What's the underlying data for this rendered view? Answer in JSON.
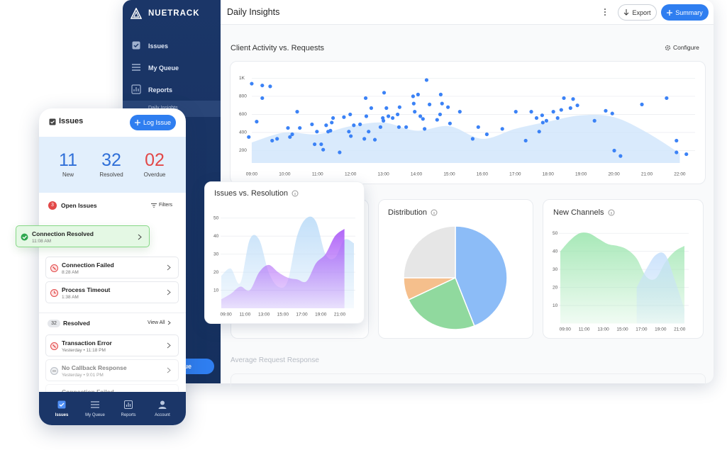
{
  "app": {
    "brand": "NUETRACK",
    "nav": [
      "Issues",
      "My Queue",
      "Reports",
      "Daily Insights"
    ],
    "sidebar_button": "Log Issue",
    "page_title": "Daily Insights",
    "export": "Export",
    "summary": "Summary",
    "configure": "Configure",
    "footer_section": "Average Request Response"
  },
  "chart_data": [
    {
      "type": "scatter",
      "title": "Client Activity vs. Requests",
      "color": "#3b82f6",
      "x": [
        8.91,
        9.0,
        9.15,
        9.32,
        9.32,
        9.56,
        9.62,
        9.77,
        10.1,
        10.16,
        10.23,
        10.38,
        10.46,
        10.83,
        10.91,
        10.98,
        11.11,
        11.17,
        11.26,
        11.32,
        11.39,
        11.43,
        11.47,
        11.67,
        11.8,
        11.95,
        11.99,
        12.01,
        12.1,
        12.29,
        12.42,
        12.46,
        12.48,
        12.55,
        12.63,
        12.74,
        12.91,
        12.98,
        13.0,
        13.02,
        13.09,
        13.15,
        13.28,
        13.43,
        13.47,
        13.49,
        13.69,
        13.9,
        13.92,
        13.95,
        14.05,
        14.12,
        14.2,
        14.25,
        14.31,
        14.4,
        14.63,
        14.72,
        14.74,
        14.78,
        14.96,
        15.02,
        15.32,
        15.71,
        15.88,
        16.14,
        16.61,
        17.02,
        17.32,
        17.49,
        17.65,
        17.73,
        17.82,
        17.84,
        17.95,
        18.16,
        18.29,
        18.4,
        18.48,
        18.68,
        18.76,
        18.89,
        19.41,
        19.75,
        19.95,
        20.01,
        20.2,
        20.85,
        21.6,
        21.9,
        21.9,
        22.2
      ],
      "values": [
        350,
        940,
        520,
        920,
        780,
        910,
        310,
        330,
        450,
        350,
        380,
        630,
        450,
        490,
        270,
        410,
        270,
        210,
        480,
        410,
        420,
        510,
        560,
        180,
        570,
        410,
        600,
        360,
        480,
        490,
        330,
        780,
        580,
        410,
        670,
        320,
        460,
        560,
        530,
        840,
        670,
        580,
        560,
        600,
        460,
        680,
        460,
        800,
        720,
        630,
        820,
        580,
        550,
        440,
        980,
        710,
        540,
        600,
        820,
        720,
        680,
        500,
        630,
        330,
        460,
        380,
        440,
        630,
        310,
        630,
        560,
        410,
        590,
        510,
        530,
        630,
        560,
        650,
        780,
        670,
        770,
        700,
        530,
        640,
        610,
        200,
        140,
        710,
        780,
        310,
        180,
        160
      ],
      "area": {
        "color": "#cfe5fb",
        "x": [
          9,
          10,
          11,
          12,
          13,
          14,
          15,
          16,
          17,
          18,
          19,
          20,
          21,
          22
        ],
        "values": [
          290,
          400,
          380,
          470,
          510,
          420,
          470,
          330,
          440,
          520,
          590,
          570,
          400,
          170
        ]
      },
      "xlim": [
        8.7,
        22.4
      ],
      "ylim": [
        0,
        1050
      ],
      "xticks": [
        {
          "value": 9,
          "label": "09:00"
        },
        {
          "value": 10,
          "label": "10:00"
        },
        {
          "value": 11,
          "label": "11:00"
        },
        {
          "value": 12,
          "label": "12:00"
        },
        {
          "value": 13,
          "label": "13:00"
        },
        {
          "value": 14,
          "label": "14:00"
        },
        {
          "value": 15,
          "label": "15:00"
        },
        {
          "value": 16,
          "label": "16:00"
        },
        {
          "value": 17,
          "label": "17:00"
        },
        {
          "value": 18,
          "label": "18:00"
        },
        {
          "value": 19,
          "label": "19:00"
        },
        {
          "value": 20,
          "label": "20:00"
        },
        {
          "value": 21,
          "label": "21:00"
        },
        {
          "value": 22,
          "label": "22:00"
        }
      ],
      "yticks": [
        200,
        400,
        600,
        800,
        {
          "value": 1000,
          "label": "1K"
        }
      ],
      "grid": true
    },
    {
      "type": "area",
      "title": "Issues vs. Resolution",
      "x": [
        8.5,
        9.5,
        10.5,
        11.5,
        12.5,
        13.5,
        14.5,
        15.5,
        16.5,
        17.5,
        18.5,
        19.5,
        20.5,
        21.5,
        22.5
      ],
      "series": [
        {
          "color": "#bcdcf8",
          "values": [
            18,
            22,
            14,
            38,
            38,
            20,
            12,
            15,
            40,
            50,
            48,
            30,
            28,
            38,
            36
          ]
        },
        {
          "color": "#a855f7",
          "values": [
            5,
            8,
            12,
            10,
            20,
            24,
            20,
            17,
            16,
            15,
            25,
            30,
            40,
            44,
            null
          ]
        }
      ],
      "xlim": [
        8.5,
        22.5
      ],
      "ylim": [
        0,
        55
      ],
      "yticks": [
        10,
        20,
        30,
        40,
        50
      ],
      "xticks": [
        {
          "value": 9,
          "label": "09:00"
        },
        {
          "value": 11,
          "label": "11:00"
        },
        {
          "value": 13,
          "label": "13:00"
        },
        {
          "value": 15,
          "label": "15:00"
        },
        {
          "value": 17,
          "label": "17:00"
        },
        {
          "value": 19,
          "label": "19:00"
        },
        {
          "value": 21,
          "label": "21:00"
        }
      ],
      "grid": true
    },
    {
      "type": "pie",
      "title": "Distribution",
      "values": [
        44,
        24,
        7,
        25
      ],
      "colors": [
        "#8cbcf7",
        "#90d99e",
        "#f5bf8c",
        "#e6e6e6"
      ]
    },
    {
      "type": "area",
      "title": "New Channels",
      "x": [
        8.5,
        9.5,
        10.5,
        11.5,
        12.5,
        13.5,
        14.5,
        15.5,
        16.5,
        17.5,
        18.5,
        19.5,
        20.5,
        21.5
      ],
      "series": [
        {
          "color": "#9ee6b0",
          "values": [
            40,
            46,
            50,
            50,
            47,
            44,
            43,
            41,
            36,
            26,
            25,
            34,
            40,
            43
          ]
        },
        {
          "color": "#c7e0fb",
          "values": [
            null,
            null,
            null,
            null,
            null,
            null,
            null,
            null,
            20,
            30,
            38,
            38,
            24,
            8
          ]
        }
      ],
      "xlim": [
        8.5,
        21.8
      ],
      "ylim": [
        0,
        55
      ],
      "yticks": [
        10,
        20,
        30,
        40,
        50
      ],
      "xticks": [
        {
          "value": 9,
          "label": "09:00"
        },
        {
          "value": 11,
          "label": "11:00"
        },
        {
          "value": 13,
          "label": "13:00"
        },
        {
          "value": 15,
          "label": "15:00"
        },
        {
          "value": 17,
          "label": "17:00"
        },
        {
          "value": 19,
          "label": "19:00"
        },
        {
          "value": 21,
          "label": "21:00"
        }
      ],
      "grid": true
    }
  ],
  "mobile": {
    "title": "Issues",
    "log_issue": "Log Issue",
    "stats": [
      {
        "value": "11",
        "label": "New"
      },
      {
        "value": "32",
        "label": "Resolved"
      },
      {
        "value": "02",
        "label": "Overdue"
      }
    ],
    "open_count": "3",
    "open_label": "Open Issues",
    "filters": "Filters",
    "toast": {
      "title": "Connection Resolved",
      "time": "11:08 AM"
    },
    "open_items": [
      {
        "title": "Connection Failed",
        "time": "8:28 AM"
      },
      {
        "title": "Process Timeout",
        "time": "1:38 AM"
      }
    ],
    "resolved_count": "32",
    "resolved_label": "Resolved",
    "view_all": "View All",
    "resolved_items": [
      {
        "title": "Transaction Error",
        "time": "Yesterday • 11:18 PM"
      },
      {
        "title": "No Callback Response",
        "time": "Yesterday • 9:01 PM"
      },
      {
        "title": "Connection Failed"
      }
    ],
    "tabs": [
      "Issues",
      "My Queue",
      "Reports",
      "Account"
    ]
  }
}
